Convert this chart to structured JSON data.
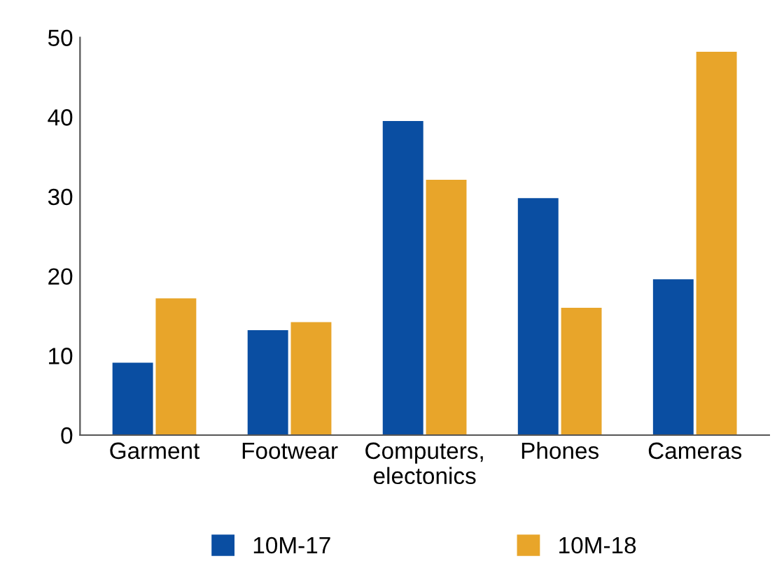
{
  "chart_data": {
    "type": "bar",
    "categories": [
      "Garment",
      "Footwear",
      "Computers,\nelectonics",
      "Phones",
      "Cameras"
    ],
    "series": [
      {
        "name": "10M-17",
        "color": "#0a4ea2",
        "values": [
          9.1,
          13.2,
          39.5,
          29.8,
          19.6
        ]
      },
      {
        "name": "10M-18",
        "color": "#e8a52a",
        "values": [
          17.2,
          14.2,
          32.1,
          16.0,
          48.2
        ]
      }
    ],
    "ylim": [
      0,
      50
    ],
    "yticks": [
      0,
      10,
      20,
      30,
      40,
      50
    ],
    "grid": false,
    "legend": "bottom"
  }
}
